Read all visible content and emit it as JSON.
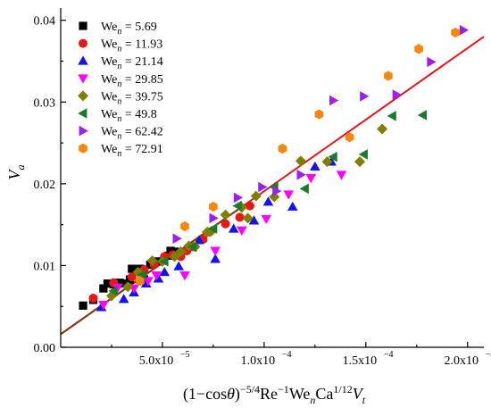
{
  "chart_data": {
    "type": "scatter",
    "title": "",
    "xlabel": {
      "parts": [
        {
          "t": "(1−cos",
          "s": "n"
        },
        {
          "t": "θ",
          "s": "i"
        },
        {
          "t": ")",
          "s": "n"
        },
        {
          "t": "−5/4",
          "s": "sup"
        },
        {
          "t": "Re",
          "s": "n"
        },
        {
          "t": "−1",
          "s": "sup"
        },
        {
          "t": "We",
          "s": "n"
        },
        {
          "t": "n",
          "s": "sub"
        },
        {
          "t": "Ca",
          "s": "n"
        },
        {
          "t": "1/12",
          "s": "sup"
        },
        {
          "t": "V",
          "s": "i"
        },
        {
          "t": "t",
          "s": "sub"
        }
      ]
    },
    "ylabel": {
      "parts": [
        {
          "t": "V",
          "s": "i"
        },
        {
          "t": "a",
          "s": "sub"
        }
      ]
    },
    "xlim": [
      0,
      0.000208
    ],
    "ylim": [
      0,
      0.0415
    ],
    "xticks": [
      5e-05,
      0.0001,
      0.00015,
      0.0002
    ],
    "xtick_labels": [
      "5.0x10",
      "1.0x10",
      "1.5x10",
      "2.0x10"
    ],
    "xtick_exp": "−5",
    "xtick_exp2": "−4",
    "yticks": [
      0.0,
      0.01,
      0.02,
      0.03,
      0.04
    ],
    "ytick_labels": [
      "0.00",
      "0.01",
      "0.02",
      "0.03",
      "0.04"
    ],
    "legend_position": "top-left",
    "fit_line": {
      "color": "#e8141c",
      "dark_color": "#7a3a1a",
      "x": [
        0.0,
        0.000208
      ],
      "y": [
        0.0016,
        0.038
      ]
    },
    "series": [
      {
        "name": "5.69",
        "marker": "square",
        "color": "#000000",
        "points": [
          [
            1.1e-05,
            0.0051
          ],
          [
            1.6e-05,
            0.0058
          ],
          [
            2.1e-05,
            0.0072
          ],
          [
            2.3e-05,
            0.0078
          ],
          [
            2.6e-05,
            0.0077
          ],
          [
            2.9e-05,
            0.0079
          ],
          [
            3.1e-05,
            0.0078
          ],
          [
            3.4e-05,
            0.0083
          ],
          [
            3.5e-05,
            0.0096
          ],
          [
            3.9e-05,
            0.0096
          ],
          [
            4.1e-05,
            0.0083
          ],
          [
            4.4e-05,
            0.0101
          ],
          [
            4.8e-05,
            0.0105
          ],
          [
            5.3e-05,
            0.0112
          ],
          [
            5.4e-05,
            0.0118
          ],
          [
            5.6e-05,
            0.0117
          ],
          [
            5.8e-05,
            0.0115
          ]
        ]
      },
      {
        "name": "11.93",
        "marker": "circle",
        "color": "#e5191a",
        "points": [
          [
            1.6e-05,
            0.006
          ],
          [
            2.6e-05,
            0.0079
          ],
          [
            3.5e-05,
            0.0086
          ],
          [
            4.1e-05,
            0.0095
          ],
          [
            4.6e-05,
            0.0101
          ],
          [
            5.1e-05,
            0.0111
          ],
          [
            5.5e-05,
            0.0113
          ],
          [
            5.9e-05,
            0.0111
          ],
          [
            6.2e-05,
            0.0118
          ],
          [
            6.5e-05,
            0.0123
          ],
          [
            7e-05,
            0.0132
          ],
          [
            7.3e-05,
            0.0141
          ],
          [
            8.1e-05,
            0.0151
          ],
          [
            8.8e-05,
            0.0159
          ],
          [
            9.3e-05,
            0.0173
          ]
        ]
      },
      {
        "name": "21.14",
        "marker": "triangle-up",
        "color": "#1414e6",
        "points": [
          [
            2e-05,
            0.0049
          ],
          [
            3.1e-05,
            0.0059
          ],
          [
            3.6e-05,
            0.0067
          ],
          [
            4.2e-05,
            0.0078
          ],
          [
            4.8e-05,
            0.0084
          ],
          [
            5.1e-05,
            0.0092
          ],
          [
            5.8e-05,
            0.0099
          ],
          [
            6.8e-05,
            0.0131
          ],
          [
            7.6e-05,
            0.0108
          ],
          [
            8.5e-05,
            0.0145
          ],
          [
            9.5e-05,
            0.0155
          ],
          [
            0.000102,
            0.0178
          ],
          [
            0.000114,
            0.0172
          ],
          [
            0.000125,
            0.0221
          ],
          [
            0.000133,
            0.0227
          ]
        ]
      },
      {
        "name": "29.85",
        "marker": "triangle-down",
        "color": "#ff00ff",
        "points": [
          [
            2.1e-05,
            0.0052
          ],
          [
            2.8e-05,
            0.0073
          ],
          [
            3.6e-05,
            0.0072
          ],
          [
            4.3e-05,
            0.0081
          ],
          [
            4.7e-05,
            0.0088
          ],
          [
            6.1e-05,
            0.0088
          ],
          [
            7.6e-05,
            0.0118
          ],
          [
            8.9e-05,
            0.0143
          ],
          [
            0.000101,
            0.0157
          ],
          [
            0.000112,
            0.0187
          ],
          [
            0.000123,
            0.0207
          ],
          [
            0.000138,
            0.0211
          ]
        ]
      },
      {
        "name": "39.75",
        "marker": "diamond",
        "color": "#808000",
        "points": [
          [
            2.5e-05,
            0.0063
          ],
          [
            3.3e-05,
            0.0074
          ],
          [
            3.8e-05,
            0.0092
          ],
          [
            4.5e-05,
            0.0106
          ],
          [
            5e-05,
            0.0105
          ],
          [
            5.6e-05,
            0.0111
          ],
          [
            5.9e-05,
            0.0117
          ],
          [
            6.3e-05,
            0.0124
          ],
          [
            6.6e-05,
            0.0123
          ],
          [
            7.2e-05,
            0.0141
          ],
          [
            7.4e-05,
            0.0142
          ],
          [
            8.1e-05,
            0.0162
          ],
          [
            8.9e-05,
            0.0171
          ],
          [
            9.2e-05,
            0.0158
          ],
          [
            9.6e-05,
            0.0185
          ],
          [
            0.000105,
            0.0184
          ],
          [
            0.000118,
            0.0228
          ],
          [
            0.000131,
            0.0227
          ],
          [
            0.000147,
            0.0227
          ],
          [
            0.000158,
            0.0267
          ]
        ]
      },
      {
        "name": "49.8",
        "marker": "triangle-left",
        "color": "#1c7a2c",
        "points": [
          [
            2.6e-05,
            0.0069
          ],
          [
            4e-05,
            0.0089
          ],
          [
            5.1e-05,
            0.0105
          ],
          [
            6.5e-05,
            0.0123
          ],
          [
            7.5e-05,
            0.0145
          ],
          [
            8.7e-05,
            0.0173
          ],
          [
            0.000105,
            0.0196
          ],
          [
            0.00012,
            0.0194
          ],
          [
            0.000134,
            0.0233
          ],
          [
            0.000149,
            0.0236
          ],
          [
            0.000163,
            0.0283
          ],
          [
            0.000178,
            0.0284
          ]
        ]
      },
      {
        "name": "62.42",
        "marker": "triangle-right",
        "color": "#9b1ff2",
        "points": [
          [
            5.7e-05,
            0.0133
          ],
          [
            7.5e-05,
            0.0158
          ],
          [
            8.7e-05,
            0.0183
          ],
          [
            9.9e-05,
            0.0196
          ],
          [
            0.000106,
            0.0191
          ],
          [
            0.000118,
            0.0211
          ],
          [
            0.000134,
            0.0302
          ],
          [
            0.000149,
            0.0307
          ],
          [
            0.000165,
            0.0309
          ],
          [
            0.000182,
            0.0349
          ],
          [
            0.000198,
            0.0388
          ]
        ]
      },
      {
        "name": "72.91",
        "marker": "hexagon",
        "color": "#f7880d",
        "points": [
          [
            3.9e-05,
            0.0081
          ],
          [
            6.1e-05,
            0.0148
          ],
          [
            7.5e-05,
            0.0172
          ],
          [
            0.000109,
            0.0243
          ],
          [
            0.000127,
            0.0285
          ],
          [
            0.000142,
            0.0257
          ],
          [
            0.000161,
            0.0332
          ],
          [
            0.000176,
            0.0365
          ],
          [
            0.000194,
            0.0385
          ]
        ]
      }
    ],
    "legend_prefix": "We",
    "legend_sub": "n",
    "legend_eq": " = "
  }
}
